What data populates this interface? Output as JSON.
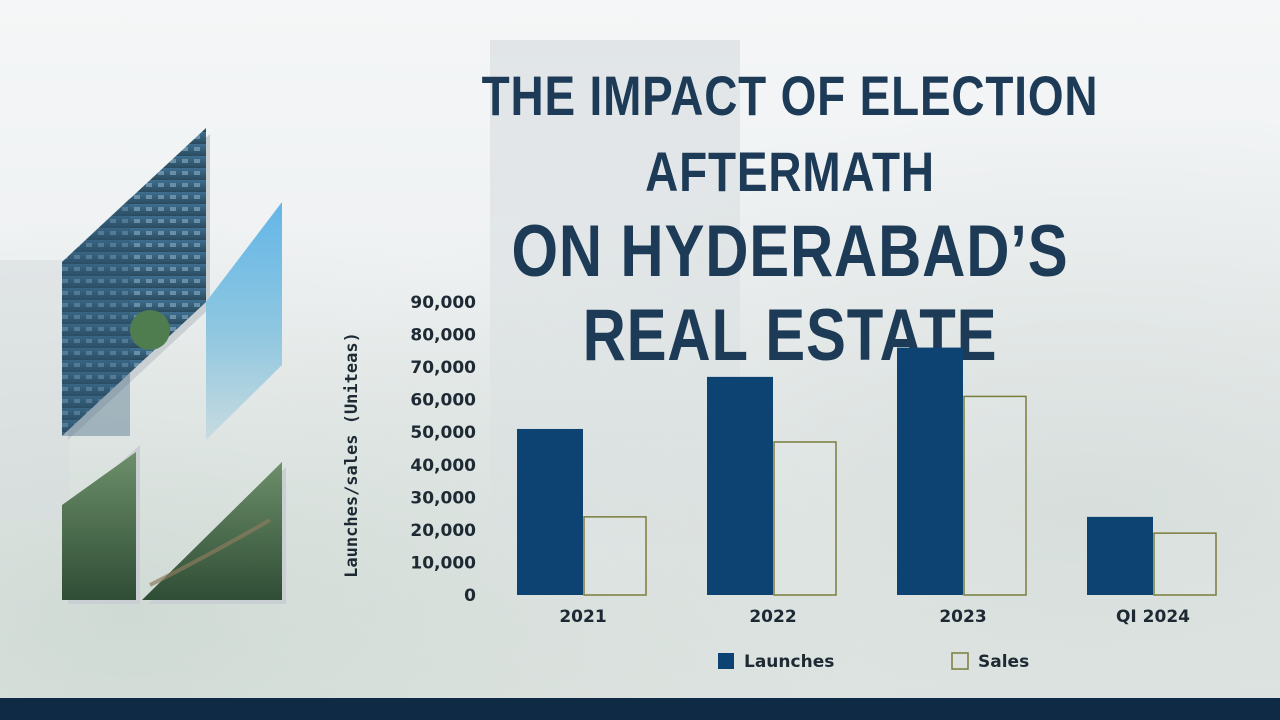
{
  "title": {
    "line1": "THE IMPACT OF ELECTION AFTERMATH",
    "line2": "ON HYDERABAD’S REAL ESTATE"
  },
  "colors": {
    "title": "#1d3b57",
    "launches": "#0d4372",
    "sales_outline": "#7a7d3c",
    "footer": "#0e2a44"
  },
  "chart_data": {
    "type": "bar",
    "categories": [
      "2021",
      "2022",
      "2023",
      "QI 2024"
    ],
    "series": [
      {
        "name": "Launches",
        "values": [
          51000,
          67000,
          76000,
          24000
        ]
      },
      {
        "name": "Sales",
        "values": [
          24000,
          47000,
          61000,
          19000
        ]
      }
    ],
    "ylabel": "Launches/sales (Uniteas)",
    "xlabel": "",
    "ylim": [
      0,
      90000
    ],
    "yticks": [
      "0",
      "10,000",
      "20,000",
      "30,000",
      "40,000",
      "50,000",
      "60,000",
      "70,000",
      "80,000",
      "90,000"
    ],
    "legend_position": "bottom",
    "grid": false
  }
}
